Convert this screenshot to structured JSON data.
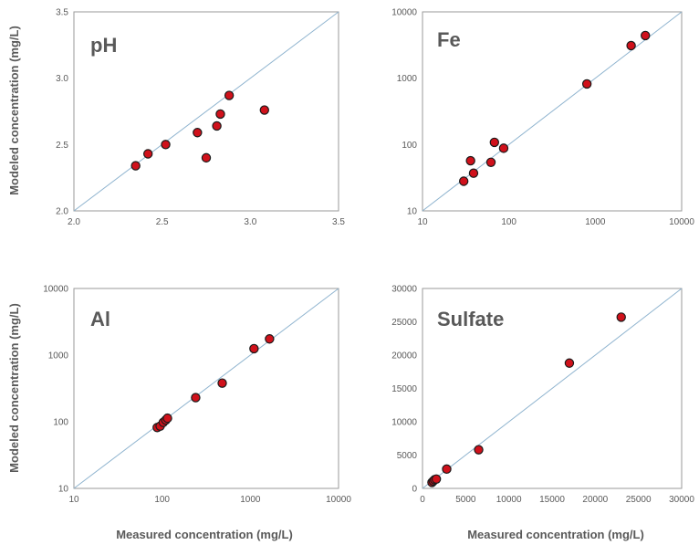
{
  "figure": {
    "x_label_left": "Measured concentration (mg/L)",
    "x_label_right": "Measured concentration (mg/L)",
    "y_label_top": "Modeled concentration (mg/L)",
    "y_label_bottom": "Modeled concentration (mg/L)"
  },
  "colors": {
    "point_fill": "#d0111b",
    "point_stroke": "#1a1a1a",
    "identity_line": "#8fb4cf",
    "frame": "#9a9a9a",
    "text": "#595959"
  },
  "chart_data": [
    {
      "type": "scatter",
      "title": "pH",
      "scale": "linear",
      "xlim": [
        2.0,
        3.5
      ],
      "ylim": [
        2.0,
        3.5
      ],
      "xticks": [
        "2.0",
        "2.5",
        "3.0",
        "3.5"
      ],
      "yticks": [
        "2.0",
        "2.5",
        "3.0",
        "3.5"
      ],
      "identity_line": true,
      "x": [
        2.35,
        2.42,
        2.52,
        2.7,
        2.75,
        2.81,
        2.83,
        2.88,
        3.08
      ],
      "y": [
        2.34,
        2.43,
        2.5,
        2.59,
        2.4,
        2.64,
        2.73,
        2.87,
        2.76
      ]
    },
    {
      "type": "scatter",
      "title": "Fe",
      "scale": "log",
      "xlim": [
        10,
        10000
      ],
      "ylim": [
        10,
        10000
      ],
      "xticks": [
        "10",
        "100",
        "1000",
        "10000"
      ],
      "yticks": [
        "10",
        "100",
        "1000",
        "10000"
      ],
      "identity_line": true,
      "x": [
        30,
        36,
        39,
        62,
        68,
        87,
        800,
        2600,
        3800
      ],
      "y": [
        28,
        57,
        37,
        54,
        108,
        88,
        820,
        3100,
        4400
      ]
    },
    {
      "type": "scatter",
      "title": "Al",
      "scale": "log",
      "xlim": [
        10,
        10000
      ],
      "ylim": [
        10,
        10000
      ],
      "xticks": [
        "10",
        "100",
        "1000",
        "10000"
      ],
      "yticks": [
        "10",
        "100",
        "1000",
        "10000"
      ],
      "identity_line": true,
      "x": [
        88,
        95,
        103,
        110,
        115,
        240,
        480,
        1100,
        1650
      ],
      "y": [
        82,
        86,
        98,
        106,
        113,
        230,
        380,
        1250,
        1750
      ]
    },
    {
      "type": "scatter",
      "title": "Sulfate",
      "scale": "linear",
      "xlim": [
        0,
        30000
      ],
      "ylim": [
        0,
        30000
      ],
      "xticks": [
        "0",
        "5000",
        "10000",
        "15000",
        "20000",
        "25000",
        "30000"
      ],
      "yticks": [
        "0",
        "5000",
        "10000",
        "15000",
        "20000",
        "25000",
        "30000"
      ],
      "identity_line": true,
      "x": [
        1100,
        1250,
        1400,
        1600,
        2800,
        6500,
        17000,
        23000
      ],
      "y": [
        900,
        1100,
        1300,
        1400,
        2900,
        5800,
        18800,
        25700
      ]
    }
  ]
}
